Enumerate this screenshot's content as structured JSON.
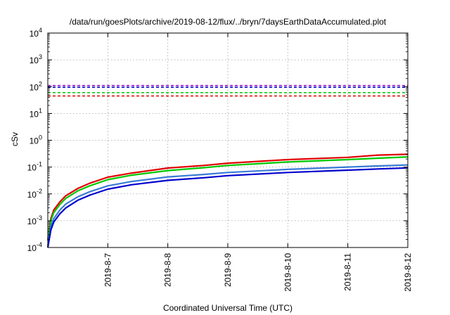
{
  "chart_data": {
    "type": "line",
    "title": "/data/run/goesPlots/archive/2019-08-12/flux/../bryn/7daysEarthDataAccumulated.plot",
    "xlabel": "Coordinated Universal Time (UTC)",
    "ylabel": "cSv",
    "y_scale": "log",
    "ylim": [
      0.0001,
      10000
    ],
    "xlim": [
      "2019-08-06",
      "2019-08-12"
    ],
    "grid": true,
    "y_ticks": [
      {
        "value": 0.0001,
        "base": "10",
        "exp": "-4"
      },
      {
        "value": 0.001,
        "base": "10",
        "exp": "-3"
      },
      {
        "value": 0.01,
        "base": "10",
        "exp": "-2"
      },
      {
        "value": 0.1,
        "base": "10",
        "exp": "-1"
      },
      {
        "value": 1,
        "base": "10",
        "exp": "0"
      },
      {
        "value": 10,
        "base": "10",
        "exp": "1"
      },
      {
        "value": 100,
        "base": "10",
        "exp": "2"
      },
      {
        "value": 1000,
        "base": "10",
        "exp": "3"
      },
      {
        "value": 10000,
        "base": "10",
        "exp": "4"
      }
    ],
    "x_ticks": [
      {
        "value": "2019-08-07",
        "label": "2019-8-7"
      },
      {
        "value": "2019-08-08",
        "label": "2019-8-8"
      },
      {
        "value": "2019-08-09",
        "label": "2019-8-9"
      },
      {
        "value": "2019-08-10",
        "label": "2019-8-10"
      },
      {
        "value": "2019-08-11",
        "label": "2019-8-11"
      },
      {
        "value": "2019-08-12",
        "label": "2019-8-12"
      }
    ],
    "reference_lines": [
      {
        "color": "#9400d3",
        "y": 110
      },
      {
        "color": "#0000cd",
        "y": 95
      },
      {
        "color": "#00c800",
        "y": 60
      },
      {
        "color": "#e00000",
        "y": 45
      }
    ],
    "series": [
      {
        "color": "#e00000",
        "x": [
          "2019-08-06 00:00",
          "2019-08-06 01:12",
          "2019-08-06 02:24",
          "2019-08-06 04:48",
          "2019-08-06 07:12",
          "2019-08-06 12:00",
          "2019-08-06 16:48",
          "2019-08-07 00:00",
          "2019-08-07 09:36",
          "2019-08-08 00:00",
          "2019-08-08 14:24",
          "2019-08-09 00:00",
          "2019-08-10 00:00",
          "2019-08-11 00:00",
          "2019-08-11 12:00",
          "2019-08-12 00:00"
        ],
        "values": [
          0.0002,
          0.0012,
          0.0025,
          0.005,
          0.0085,
          0.016,
          0.025,
          0.042,
          0.06,
          0.092,
          0.115,
          0.14,
          0.19,
          0.23,
          0.28,
          0.3
        ]
      },
      {
        "color": "#00c800",
        "x": [
          "2019-08-06 00:00",
          "2019-08-06 01:12",
          "2019-08-06 02:24",
          "2019-08-06 04:48",
          "2019-08-06 07:12",
          "2019-08-06 12:00",
          "2019-08-06 16:48",
          "2019-08-07 00:00",
          "2019-08-07 09:36",
          "2019-08-08 00:00",
          "2019-08-08 14:24",
          "2019-08-09 00:00",
          "2019-08-10 00:00",
          "2019-08-11 00:00",
          "2019-08-11 12:00",
          "2019-08-12 00:00"
        ],
        "values": [
          0.00018,
          0.001,
          0.002,
          0.004,
          0.0068,
          0.013,
          0.02,
          0.034,
          0.05,
          0.074,
          0.095,
          0.115,
          0.155,
          0.19,
          0.215,
          0.24
        ]
      },
      {
        "color": "#3a7bd5",
        "x": [
          "2019-08-06 00:00",
          "2019-08-06 01:12",
          "2019-08-06 02:24",
          "2019-08-06 04:48",
          "2019-08-06 07:12",
          "2019-08-06 12:00",
          "2019-08-06 16:48",
          "2019-08-07 00:00",
          "2019-08-07 09:36",
          "2019-08-08 00:00",
          "2019-08-08 14:24",
          "2019-08-09 00:00",
          "2019-08-10 00:00",
          "2019-08-11 00:00",
          "2019-08-11 12:00",
          "2019-08-12 00:00"
        ],
        "values": [
          0.00012,
          0.0006,
          0.0012,
          0.0025,
          0.0042,
          0.0078,
          0.012,
          0.02,
          0.029,
          0.043,
          0.053,
          0.063,
          0.082,
          0.1,
          0.11,
          0.12
        ]
      },
      {
        "color": "#0000cd",
        "x": [
          "2019-08-06 00:00",
          "2019-08-06 01:12",
          "2019-08-06 02:24",
          "2019-08-06 04:48",
          "2019-08-06 07:12",
          "2019-08-06 12:00",
          "2019-08-06 16:48",
          "2019-08-07 00:00",
          "2019-08-07 09:36",
          "2019-08-08 00:00",
          "2019-08-08 14:24",
          "2019-08-09 00:00",
          "2019-08-10 00:00",
          "2019-08-11 00:00",
          "2019-08-11 12:00",
          "2019-08-12 00:00"
        ],
        "values": [
          0.0001,
          0.00045,
          0.0009,
          0.0018,
          0.003,
          0.0058,
          0.009,
          0.015,
          0.022,
          0.032,
          0.04,
          0.048,
          0.063,
          0.077,
          0.085,
          0.093
        ]
      }
    ]
  }
}
